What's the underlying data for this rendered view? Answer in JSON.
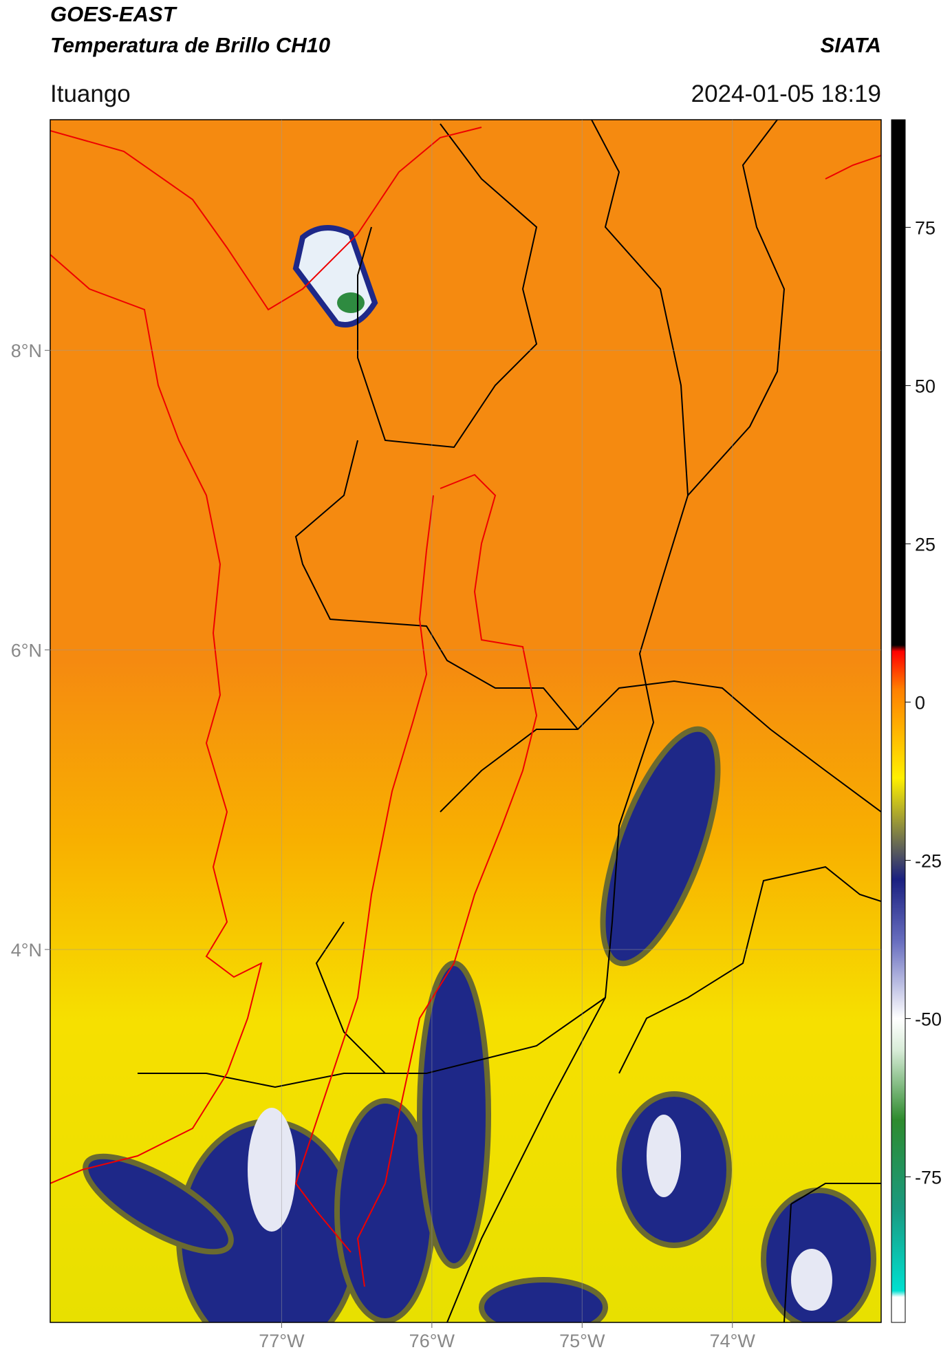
{
  "header": {
    "title": "GOES-EAST",
    "subtitle": "Temperatura de Brillo CH10",
    "source": "SIATA",
    "location": "Ituango",
    "datetime": "2024-01-05 18:19"
  },
  "map": {
    "xlim": [
      -78.54,
      -73.01
    ],
    "ylim": [
      1.51,
      9.54
    ],
    "xticks": [
      {
        "value": -77,
        "label": "77°W"
      },
      {
        "value": -76,
        "label": "76°W"
      },
      {
        "value": -75,
        "label": "75°W"
      },
      {
        "value": -74,
        "label": "74°W"
      }
    ],
    "yticks": [
      {
        "value": 8,
        "label": "8°N"
      },
      {
        "value": 6,
        "label": "6°N"
      },
      {
        "value": 4,
        "label": "4°N"
      }
    ],
    "grid": true
  },
  "colorbar": {
    "lim": [
      -98,
      92
    ],
    "ticks": [
      75,
      50,
      25,
      0,
      -25,
      -50,
      -75
    ],
    "colors": [
      {
        "value": -98,
        "color": "#ffffff"
      },
      {
        "value": -94,
        "color": "#ffffff"
      },
      {
        "value": -93,
        "color": "#00e0d0"
      },
      {
        "value": -80,
        "color": "#1a9a80"
      },
      {
        "value": -66,
        "color": "#2e8b2e"
      },
      {
        "value": -55,
        "color": "#d8ecd8"
      },
      {
        "value": -50,
        "color": "#ffffff"
      },
      {
        "value": -38,
        "color": "#6a70c0"
      },
      {
        "value": -28,
        "color": "#1a2080"
      },
      {
        "value": -20,
        "color": "#8a8a40"
      },
      {
        "value": -12,
        "color": "#fff000"
      },
      {
        "value": -6,
        "color": "#ffc000"
      },
      {
        "value": 2,
        "color": "#ff8000"
      },
      {
        "value": 8,
        "color": "#ff0000"
      },
      {
        "value": 9,
        "color": "#000000"
      },
      {
        "value": 92,
        "color": "#000000"
      }
    ]
  }
}
